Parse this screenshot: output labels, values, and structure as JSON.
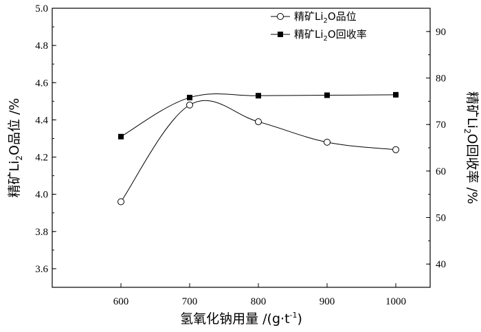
{
  "chart_data": {
    "type": "line",
    "xlabel_main": "氢氧化钠用量",
    "xlabel_unit_prefix": " /(g·t",
    "xlabel_unit_sup": "-1",
    "xlabel_unit_suffix": ")",
    "ylabel_left": {
      "pre": "精矿Li",
      "sub": "2",
      "post": "O品位 /%"
    },
    "ylabel_right": {
      "pre": "精矿Li",
      "sub": "2",
      "post": "O回收率 /%"
    },
    "x": [
      600,
      700,
      800,
      900,
      1000
    ],
    "x_ticks": [
      "600",
      "700",
      "800",
      "900",
      "1000"
    ],
    "xlim": [
      500,
      1050
    ],
    "y_left_ticks": [
      "3.6",
      "3.8",
      "4.0",
      "4.2",
      "4.4",
      "4.6",
      "4.8",
      "5.0"
    ],
    "y_left_lim": [
      3.5,
      5.0
    ],
    "y_right_ticks": [
      "40",
      "50",
      "60",
      "70",
      "80",
      "90"
    ],
    "y_right_lim": [
      35,
      95
    ],
    "legend_position": "top-right",
    "series": [
      {
        "axis": "left",
        "marker": "open-circle",
        "legend_pre": "精矿Li",
        "legend_sub": "2",
        "legend_post": "O品位",
        "values": [
          3.96,
          4.48,
          4.39,
          4.28,
          4.24
        ]
      },
      {
        "axis": "right",
        "marker": "filled-square",
        "legend_pre": "精矿Li",
        "legend_sub": "2",
        "legend_post": "O回收率",
        "values": [
          67.4,
          75.8,
          76.2,
          76.3,
          76.4
        ]
      }
    ]
  }
}
